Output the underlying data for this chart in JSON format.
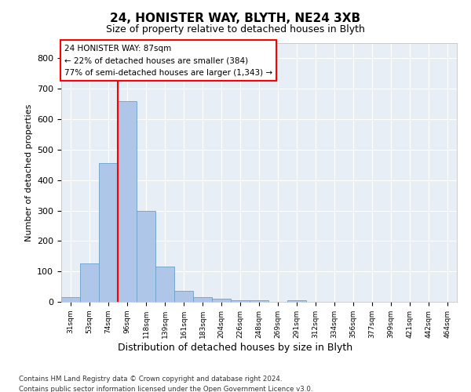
{
  "title1": "24, HONISTER WAY, BLYTH, NE24 3XB",
  "title2": "Size of property relative to detached houses in Blyth",
  "xlabel": "Distribution of detached houses by size in Blyth",
  "ylabel": "Number of detached properties",
  "footer_line1": "Contains HM Land Registry data © Crown copyright and database right 2024.",
  "footer_line2": "Contains public sector information licensed under the Open Government Licence v3.0.",
  "annotation_line1": "24 HONISTER WAY: 87sqm",
  "annotation_line2": "← 22% of detached houses are smaller (384)",
  "annotation_line3": "77% of semi-detached houses are larger (1,343) →",
  "bin_labels": [
    "31sqm",
    "53sqm",
    "74sqm",
    "96sqm",
    "118sqm",
    "139sqm",
    "161sqm",
    "183sqm",
    "204sqm",
    "226sqm",
    "248sqm",
    "269sqm",
    "291sqm",
    "312sqm",
    "334sqm",
    "356sqm",
    "377sqm",
    "399sqm",
    "421sqm",
    "442sqm",
    "464sqm"
  ],
  "bar_values": [
    15,
    125,
    455,
    660,
    300,
    115,
    35,
    15,
    10,
    5,
    5,
    0,
    5,
    0,
    0,
    0,
    0,
    0,
    0,
    0,
    0
  ],
  "bar_color": "#aec6e8",
  "bar_edge_color": "#6aa0cc",
  "red_line_x": 2.5,
  "ylim": [
    0,
    850
  ],
  "yticks": [
    0,
    100,
    200,
    300,
    400,
    500,
    600,
    700,
    800
  ],
  "plot_bg_color": "#e8eef5",
  "grid_color": "#ffffff"
}
